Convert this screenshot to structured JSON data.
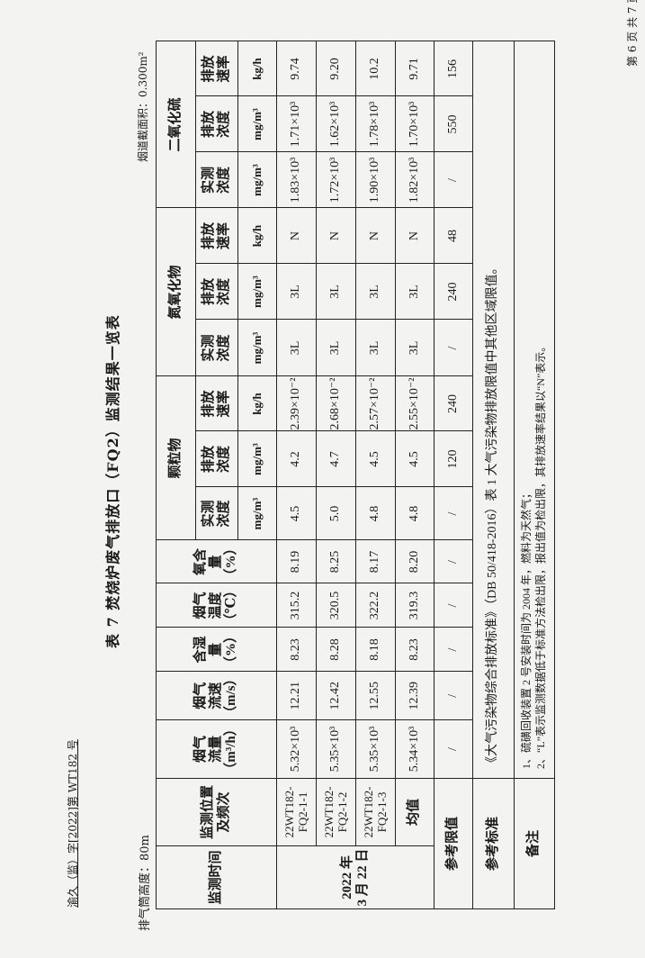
{
  "header": {
    "doc_number": "渝久（监）字[2022]第 WT182 号",
    "page_number": "第 6 页 共 7 页",
    "title": "表 7  焚烧炉废气排放口（FQ2）监测结果一览表",
    "stack_height": "排气筒高度：80m",
    "flue_area": "烟道截面积：0.300m²"
  },
  "table": {
    "col_headers": [
      "监测时间",
      "监测位置\n及频次",
      "烟气\n流量\n（m³/h）",
      "烟气\n流速\n（m/s）",
      "含湿\n量\n（%）",
      "烟气\n温度\n（℃）",
      "氧含\n量\n（%）"
    ],
    "groups": [
      "颗粒物",
      "氮氧化物",
      "二氧化硫"
    ],
    "sub_headers": [
      "实测\n浓度",
      "排放\n浓度",
      "排放\n速率"
    ],
    "units": [
      "mg/m³",
      "mg/m³",
      "kg/h"
    ],
    "date": "2022 年\n3 月 22 日",
    "rows": [
      {
        "location": "22WT182-\nFQ2-1-1",
        "values": [
          "5.32×10³",
          "12.21",
          "8.23",
          "315.2",
          "8.19",
          "4.5",
          "4.2",
          "2.39×10⁻²",
          "3L",
          "3L",
          "N",
          "1.83×10³",
          "1.71×10³",
          "9.74"
        ]
      },
      {
        "location": "22WT182-\nFQ2-1-2",
        "values": [
          "5.35×10³",
          "12.42",
          "8.28",
          "320.5",
          "8.25",
          "5.0",
          "4.7",
          "2.68×10⁻²",
          "3L",
          "3L",
          "N",
          "1.72×10³",
          "1.62×10³",
          "9.20"
        ]
      },
      {
        "location": "22WT182-\nFQ2-1-3",
        "values": [
          "5.35×10³",
          "12.55",
          "8.18",
          "322.2",
          "8.17",
          "4.8",
          "4.5",
          "2.57×10⁻²",
          "3L",
          "3L",
          "N",
          "1.90×10³",
          "1.78×10³",
          "10.2"
        ]
      },
      {
        "location": "均值",
        "values": [
          "5.34×10³",
          "12.39",
          "8.23",
          "319.3",
          "8.20",
          "4.8",
          "4.5",
          "2.55×10⁻²",
          "3L",
          "3L",
          "N",
          "1.82×10³",
          "1.70×10³",
          "9.71"
        ]
      }
    ],
    "limit": {
      "label": "参考限值",
      "values": [
        "/",
        "/",
        "/",
        "/",
        "/",
        "/",
        "120",
        "240",
        "/",
        "240",
        "48",
        "/",
        "550",
        "156"
      ]
    },
    "standard": {
      "label": "参考标准",
      "text": "《大气污染物综合排放标准》（DB 50/418-2016）表 1 大气污染物排放限值中其他区域限值。"
    },
    "remarks": {
      "label": "备注",
      "text": "1、硫磺回收装置 2 号安装时间为 2004 年，燃料为天然气；\n2、“L”表示监测数据低于标准方法检出限，报出值为检出限，其排放速率结果以“N”表示。"
    }
  }
}
